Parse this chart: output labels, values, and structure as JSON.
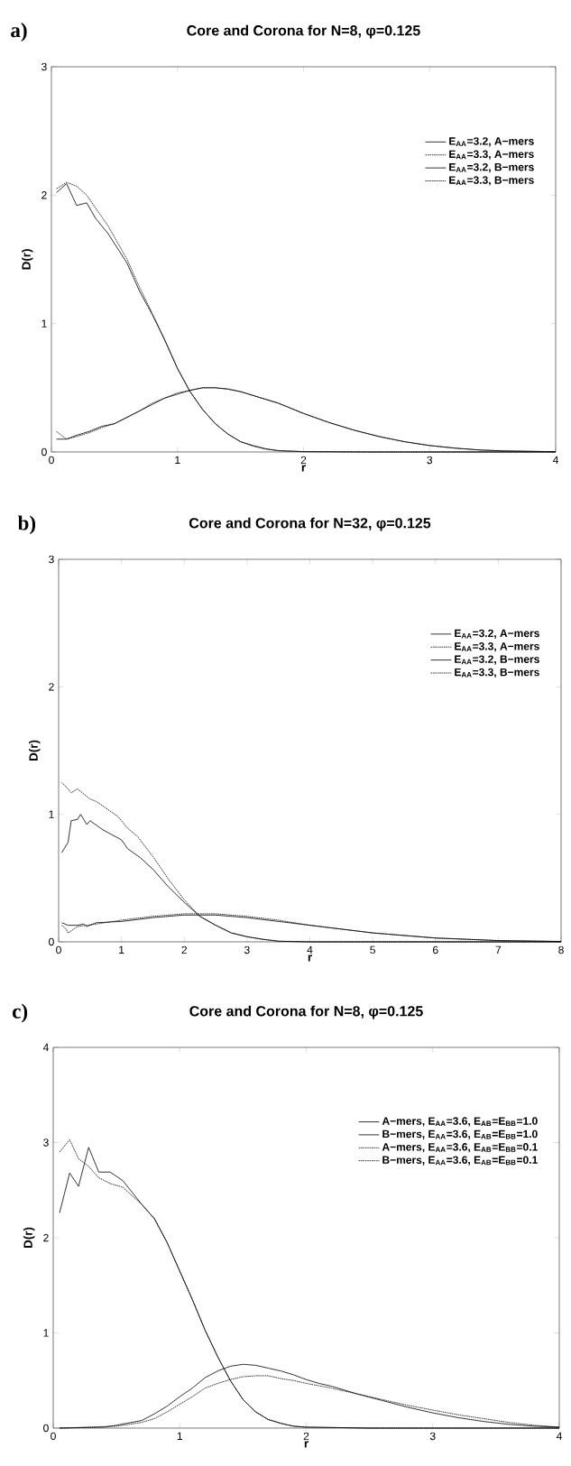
{
  "chart_data": [
    {
      "type": "line",
      "title": "Core and Corona for N=8, φ=0.125",
      "xlabel": "r",
      "ylabel": "D(r)",
      "annotations": [
        "a)"
      ],
      "xlim": [
        0,
        4
      ],
      "ylim": [
        0,
        3
      ],
      "xticks": [
        0,
        1,
        2,
        3,
        4
      ],
      "yticks": [
        0,
        1,
        2,
        3
      ],
      "legend": "top right",
      "series": [
        {
          "name": "E$_{AA}$=3.2, A−mers",
          "color": "#000000",
          "line_style": "solid",
          "x": [
            0.04,
            0.12,
            0.2,
            0.28,
            0.35,
            0.45,
            0.6,
            0.7,
            0.8,
            0.9,
            1.0,
            1.1,
            1.2,
            1.3,
            1.4,
            1.5,
            1.6,
            1.7,
            1.8,
            2.0,
            2.5,
            4.0
          ],
          "values": [
            2.02,
            2.09,
            1.92,
            1.94,
            1.82,
            1.7,
            1.47,
            1.25,
            1.07,
            0.87,
            0.65,
            0.47,
            0.33,
            0.22,
            0.14,
            0.08,
            0.05,
            0.025,
            0.01,
            0.003,
            0,
            0
          ]
        },
        {
          "name": "E$_{AA}$=3.3, A−mers",
          "color": "#000000",
          "line_style": "dotted",
          "x": [
            0.04,
            0.12,
            0.2,
            0.28,
            0.35,
            0.45,
            0.6,
            0.7,
            0.8,
            0.9,
            1.0,
            1.1,
            1.2,
            1.3,
            1.4,
            1.5,
            1.6,
            1.7,
            1.8,
            2.0,
            2.5,
            4.0
          ],
          "values": [
            2.05,
            2.1,
            2.07,
            2.0,
            1.9,
            1.76,
            1.5,
            1.28,
            1.08,
            0.87,
            0.65,
            0.47,
            0.33,
            0.22,
            0.14,
            0.08,
            0.045,
            0.022,
            0.01,
            0.002,
            0,
            0
          ]
        },
        {
          "name": "E$_{AA}$=3.2, B−mers",
          "color": "#000000",
          "line_style": "solid",
          "x": [
            0.04,
            0.12,
            0.2,
            0.3,
            0.4,
            0.5,
            0.6,
            0.7,
            0.8,
            0.9,
            1.0,
            1.1,
            1.2,
            1.3,
            1.4,
            1.5,
            1.6,
            1.8,
            2.0,
            2.2,
            2.4,
            2.6,
            2.8,
            3.0,
            3.2,
            3.4,
            3.6,
            4.0
          ],
          "values": [
            0.1,
            0.1,
            0.13,
            0.16,
            0.2,
            0.22,
            0.27,
            0.32,
            0.37,
            0.42,
            0.45,
            0.48,
            0.5,
            0.5,
            0.49,
            0.47,
            0.44,
            0.38,
            0.3,
            0.23,
            0.17,
            0.12,
            0.08,
            0.05,
            0.03,
            0.015,
            0.008,
            0.002
          ]
        },
        {
          "name": "E$_{AA}$=3.3, B−mers",
          "color": "#000000",
          "line_style": "dotted",
          "x": [
            0.04,
            0.12,
            0.2,
            0.3,
            0.4,
            0.5,
            0.6,
            0.7,
            0.8,
            0.9,
            1.0,
            1.1,
            1.2,
            1.3,
            1.4,
            1.5,
            1.6,
            1.8,
            2.0,
            2.2,
            2.4,
            2.6,
            2.8,
            3.0,
            3.2,
            3.4,
            3.6,
            4.0
          ],
          "values": [
            0.16,
            0.1,
            0.12,
            0.15,
            0.19,
            0.22,
            0.27,
            0.32,
            0.38,
            0.42,
            0.46,
            0.48,
            0.5,
            0.5,
            0.49,
            0.47,
            0.44,
            0.38,
            0.3,
            0.23,
            0.17,
            0.12,
            0.08,
            0.05,
            0.03,
            0.015,
            0.008,
            0.002
          ]
        }
      ]
    },
    {
      "type": "line",
      "title": "Core and Corona for N=32, φ=0.125",
      "xlabel": "r",
      "ylabel": "D(r)",
      "annotations": [
        "b)"
      ],
      "xlim": [
        0,
        8
      ],
      "ylim": [
        0,
        3
      ],
      "xticks": [
        0,
        1,
        2,
        3,
        4,
        5,
        6,
        7,
        8
      ],
      "yticks": [
        0,
        1,
        2,
        3
      ],
      "legend": "top right",
      "series": [
        {
          "name": "E$_{AA}$=3.2, A−mers",
          "color": "#000000",
          "line_style": "solid",
          "x": [
            0.05,
            0.15,
            0.2,
            0.3,
            0.35,
            0.45,
            0.5,
            0.7,
            1.0,
            1.1,
            1.3,
            1.5,
            1.75,
            2.0,
            2.25,
            2.5,
            2.75,
            3.0,
            3.25,
            3.5,
            4.0,
            8.0
          ],
          "values": [
            0.7,
            0.78,
            0.95,
            0.96,
            1.0,
            0.92,
            0.95,
            0.88,
            0.8,
            0.73,
            0.66,
            0.57,
            0.43,
            0.31,
            0.2,
            0.13,
            0.07,
            0.04,
            0.02,
            0.005,
            0,
            0
          ]
        },
        {
          "name": "E$_{AA}$=3.3, A−mers",
          "color": "#000000",
          "line_style": "dotted",
          "x": [
            0.05,
            0.15,
            0.2,
            0.3,
            0.4,
            0.5,
            0.6,
            0.75,
            0.95,
            1.1,
            1.25,
            1.5,
            1.75,
            2.0,
            2.25,
            2.5,
            2.75,
            3.0,
            3.25,
            3.5,
            4.0,
            8.0
          ],
          "values": [
            1.25,
            1.2,
            1.17,
            1.2,
            1.16,
            1.12,
            1.1,
            1.05,
            0.98,
            0.89,
            0.83,
            0.67,
            0.49,
            0.33,
            0.2,
            0.13,
            0.07,
            0.04,
            0.02,
            0.005,
            0,
            0
          ]
        },
        {
          "name": "E$_{AA}$=3.2, B−mers",
          "color": "#000000",
          "line_style": "solid",
          "x": [
            0.05,
            0.15,
            0.3,
            0.4,
            0.45,
            0.6,
            1.0,
            1.5,
            2.0,
            2.5,
            3.0,
            3.5,
            4.0,
            4.5,
            5.0,
            5.5,
            6.0,
            6.5,
            7.0,
            8.0
          ],
          "values": [
            0.15,
            0.13,
            0.13,
            0.14,
            0.12,
            0.15,
            0.16,
            0.19,
            0.21,
            0.21,
            0.19,
            0.16,
            0.13,
            0.1,
            0.07,
            0.05,
            0.03,
            0.02,
            0.01,
            0.003
          ]
        },
        {
          "name": "E$_{AA}$=3.3, B−mers",
          "color": "#000000",
          "line_style": "dotted",
          "x": [
            0.05,
            0.12,
            0.15,
            0.3,
            0.6,
            1.0,
            1.5,
            2.0,
            2.5,
            3.0,
            3.5,
            4.0,
            4.5,
            5.0,
            5.5,
            6.0,
            6.5,
            7.0,
            8.0
          ],
          "values": [
            0.13,
            0.1,
            0.07,
            0.12,
            0.14,
            0.17,
            0.2,
            0.22,
            0.22,
            0.2,
            0.17,
            0.13,
            0.1,
            0.07,
            0.05,
            0.03,
            0.02,
            0.01,
            0.003
          ]
        }
      ]
    },
    {
      "type": "line",
      "title": "Core and Corona for N=8, φ=0.125",
      "xlabel": "r",
      "ylabel": "D(r)",
      "annotations": [
        "c)"
      ],
      "xlim": [
        0,
        4
      ],
      "ylim": [
        0,
        4
      ],
      "xticks": [
        0,
        1,
        2,
        3,
        4
      ],
      "yticks": [
        0,
        1,
        2,
        3,
        4
      ],
      "legend": "top right",
      "series": [
        {
          "name": "A−mers, E$_{AA}$=3.6, E$_{AB}$=E$_{BB}$=1.0",
          "color": "#000000",
          "line_style": "solid",
          "x": [
            0.05,
            0.13,
            0.2,
            0.28,
            0.36,
            0.45,
            0.55,
            0.7,
            0.8,
            0.9,
            1.0,
            1.1,
            1.2,
            1.3,
            1.4,
            1.5,
            1.6,
            1.7,
            1.8,
            1.9,
            2.0,
            2.5,
            4.0
          ],
          "values": [
            2.26,
            2.68,
            2.54,
            2.95,
            2.69,
            2.69,
            2.6,
            2.35,
            2.2,
            1.95,
            1.65,
            1.35,
            1.03,
            0.75,
            0.5,
            0.3,
            0.17,
            0.09,
            0.05,
            0.02,
            0.01,
            0,
            0
          ]
        },
        {
          "name": "B−mers, E$_{AA}$=3.6, E$_{AB}$=E$_{BB}$=1.0",
          "color": "#000000",
          "line_style": "solid",
          "x": [
            0.05,
            0.4,
            0.5,
            0.7,
            0.8,
            0.9,
            1.0,
            1.1,
            1.2,
            1.3,
            1.4,
            1.5,
            1.6,
            1.7,
            1.8,
            1.9,
            2.0,
            2.1,
            2.2,
            2.4,
            2.6,
            2.8,
            3.0,
            3.2,
            3.4,
            3.6,
            3.8,
            4.0
          ],
          "values": [
            0,
            0.01,
            0.03,
            0.08,
            0.15,
            0.23,
            0.33,
            0.42,
            0.53,
            0.6,
            0.65,
            0.67,
            0.66,
            0.63,
            0.6,
            0.56,
            0.51,
            0.47,
            0.44,
            0.36,
            0.29,
            0.22,
            0.16,
            0.11,
            0.07,
            0.04,
            0.02,
            0.01
          ]
        },
        {
          "name": "A−mers, E$_{AA}$=3.6, E$_{AB}$=E$_{BB}$=0.1",
          "color": "#000000",
          "line_style": "dotted",
          "x": [
            0.05,
            0.13,
            0.2,
            0.28,
            0.36,
            0.45,
            0.55,
            0.7,
            0.8,
            0.9,
            1.0,
            1.1,
            1.2,
            1.3,
            1.4,
            1.5,
            1.6,
            1.7,
            1.8,
            1.9,
            2.0,
            2.5,
            4.0
          ],
          "values": [
            2.9,
            3.03,
            2.83,
            2.75,
            2.63,
            2.57,
            2.53,
            2.35,
            2.2,
            1.95,
            1.65,
            1.35,
            1.03,
            0.75,
            0.5,
            0.3,
            0.17,
            0.09,
            0.05,
            0.02,
            0.01,
            0,
            0
          ]
        },
        {
          "name": "B−mers, E$_{AA}$=3.6, E$_{AB}$=E$_{BB}$=0.1",
          "color": "#000000",
          "line_style": "dotted",
          "x": [
            0.05,
            0.5,
            0.7,
            0.8,
            0.9,
            1.0,
            1.1,
            1.2,
            1.3,
            1.4,
            1.5,
            1.6,
            1.7,
            1.8,
            1.9,
            2.0,
            2.2,
            2.4,
            2.6,
            2.8,
            3.0,
            3.2,
            3.4,
            3.6,
            3.8,
            4.0
          ],
          "values": [
            0,
            0.02,
            0.06,
            0.1,
            0.17,
            0.25,
            0.33,
            0.42,
            0.47,
            0.51,
            0.54,
            0.55,
            0.55,
            0.52,
            0.5,
            0.47,
            0.42,
            0.36,
            0.3,
            0.24,
            0.19,
            0.14,
            0.1,
            0.06,
            0.03,
            0.01
          ]
        }
      ]
    }
  ]
}
